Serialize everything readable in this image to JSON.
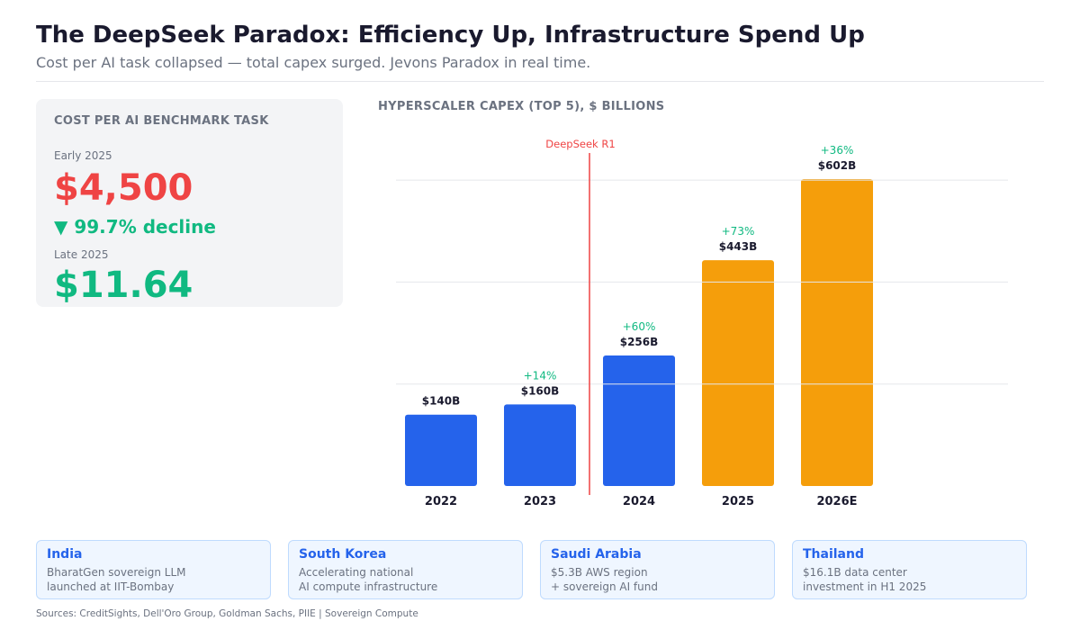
{
  "header": {
    "title": "The DeepSeek Paradox: Efficiency Up, Infrastructure Spend Up",
    "subtitle": "Cost per AI task collapsed — total capex surged. Jevons Paradox in real time."
  },
  "cost_card": {
    "heading": "COST PER AI BENCHMARK TASK",
    "early_label": "Early 2025",
    "early_value": "$4,500",
    "decline": "▼  99.7% decline",
    "late_label": "Late 2025",
    "late_value": "$11.64"
  },
  "chart_data": {
    "type": "bar",
    "title": "HYPERSCALER CAPEX (TOP 5), $ BILLIONS",
    "categories": [
      "2022",
      "2023",
      "2024",
      "2025",
      "2026E"
    ],
    "values": [
      140,
      160,
      256,
      443,
      602
    ],
    "value_labels": [
      "$140B",
      "$160B",
      "$256B",
      "$443B",
      "$602B"
    ],
    "growth_labels": [
      "",
      "+14%",
      "+60%",
      "+73%",
      "+36%"
    ],
    "colors": [
      "#2563eb",
      "#2563eb",
      "#2563eb",
      "#f59e0b",
      "#f59e0b"
    ],
    "gridlines": [
      200,
      400,
      600
    ],
    "ylim": [
      0,
      602
    ],
    "annotation": {
      "label": "DeepSeek R1",
      "between": [
        "2023",
        "2024"
      ],
      "color": "#ef4444"
    },
    "growth_color": "#10b981"
  },
  "regions": [
    {
      "name": "India",
      "line1": "BharatGen sovereign LLM",
      "line2": "launched at IIT-Bombay"
    },
    {
      "name": "South Korea",
      "line1": "Accelerating national",
      "line2": "AI compute infrastructure"
    },
    {
      "name": "Saudi Arabia",
      "line1": "$5.3B AWS region",
      "line2": "+ sovereign AI fund"
    },
    {
      "name": "Thailand",
      "line1": "$16.1B data center",
      "line2": "investment in H1 2025"
    }
  ],
  "footer": {
    "sources": "Sources: CreditSights, Dell'Oro Group, Goldman Sachs, PIIE  |  Sovereign Compute"
  }
}
